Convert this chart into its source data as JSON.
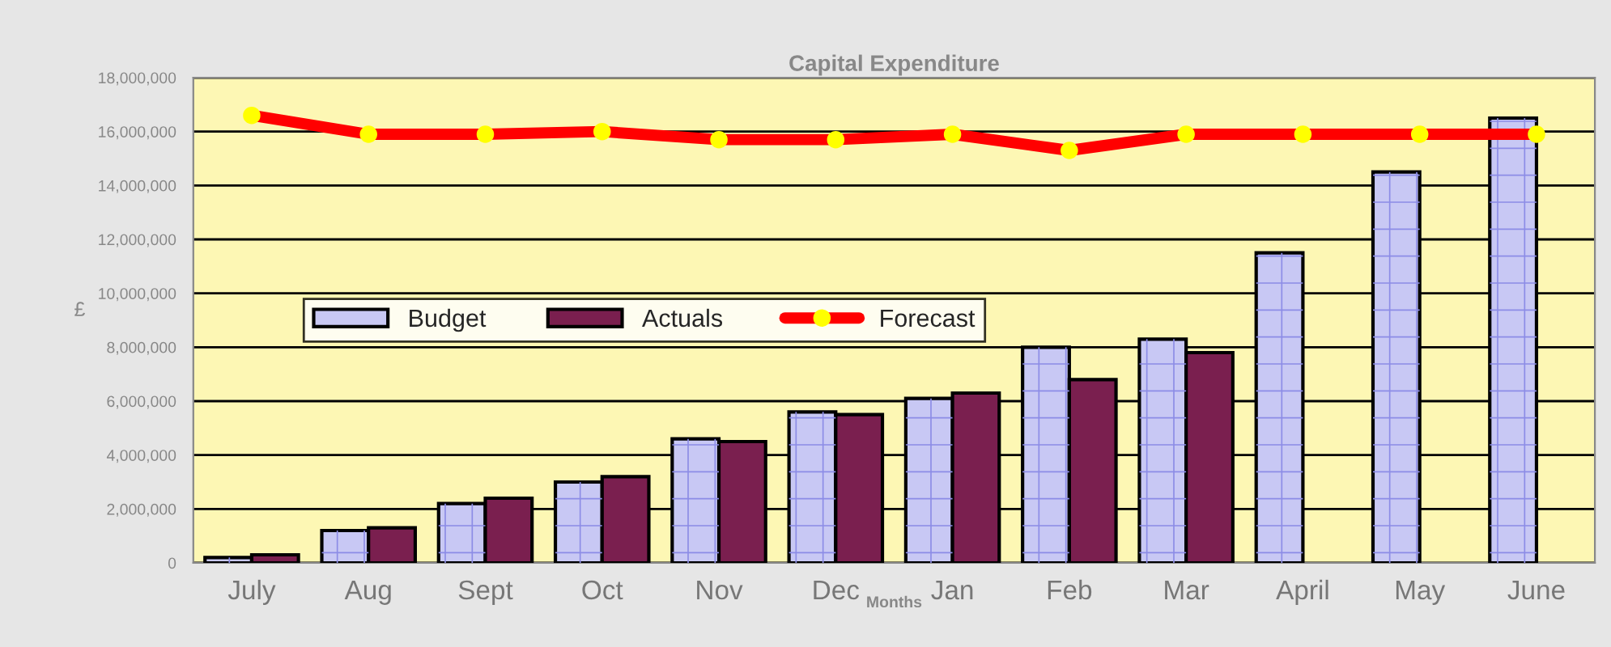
{
  "chart_data": {
    "type": "bar",
    "title": "Capital Expenditure",
    "xlabel": "Months",
    "ylabel": "£",
    "categories": [
      "July",
      "Aug",
      "Sept",
      "Oct",
      "Nov",
      "Dec",
      "Jan",
      "Feb",
      "Mar",
      "April",
      "May",
      "June"
    ],
    "series": [
      {
        "name": "Budget",
        "color": "#c8c8f4",
        "values": [
          200000,
          1200000,
          2200000,
          3000000,
          4600000,
          5600000,
          6100000,
          8000000,
          8300000,
          11500000,
          14500000,
          16500000
        ]
      },
      {
        "name": "Actuals",
        "color": "#7a1f4f",
        "values": [
          300000,
          1300000,
          2400000,
          3200000,
          4500000,
          5500000,
          6300000,
          6800000,
          7800000,
          null,
          null,
          null
        ]
      },
      {
        "name": "Forecast",
        "type": "line",
        "color": "#ff0000",
        "marker": "circle",
        "values": [
          16600000,
          15900000,
          15900000,
          16000000,
          15700000,
          15700000,
          15900000,
          15300000,
          15900000,
          15900000,
          15900000,
          15900000
        ]
      }
    ],
    "ylim": [
      0,
      18000000
    ],
    "yticks": [
      {
        "value": 0,
        "label": "0"
      },
      {
        "value": 2000000,
        "label": "2,000,000"
      },
      {
        "value": 4000000,
        "label": "4,000,000"
      },
      {
        "value": 6000000,
        "label": "6,000,000"
      },
      {
        "value": 8000000,
        "label": "8,000,000"
      },
      {
        "value": 10000000,
        "label": "10,000,000"
      },
      {
        "value": 12000000,
        "label": "12,000,000"
      },
      {
        "value": 14000000,
        "label": "14,000,000"
      },
      {
        "value": 16000000,
        "label": "16,000,000"
      },
      {
        "value": 18000000,
        "label": "18,000,000"
      }
    ],
    "grid": "y",
    "legend": "left"
  }
}
